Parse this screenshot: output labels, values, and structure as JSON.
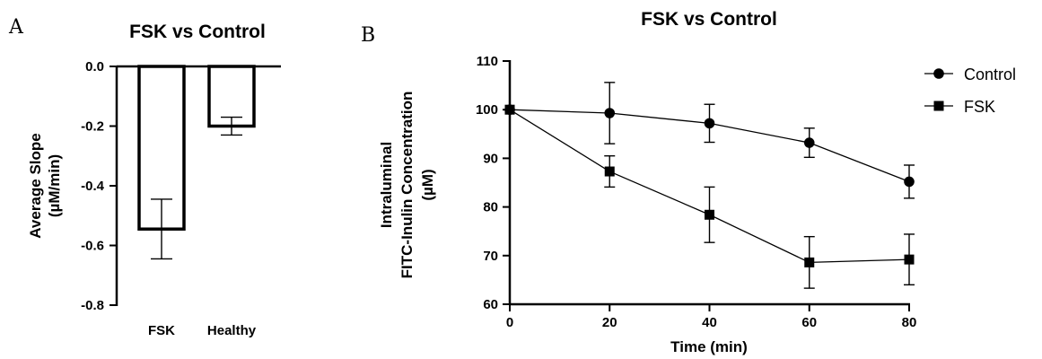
{
  "chart_data": [
    {
      "panel": "A",
      "type": "bar",
      "title": "FSK vs Control",
      "ylabel_lines": [
        "Average Slope",
        "(µM/min)"
      ],
      "xlabel": "",
      "categories": [
        "FSK",
        "Healthy"
      ],
      "values": [
        -0.545,
        -0.2
      ],
      "error": [
        0.1,
        0.03
      ],
      "ylim": [
        -0.8,
        0.0
      ],
      "yticks": [
        0.0,
        -0.2,
        -0.4,
        -0.6,
        -0.8
      ],
      "ytick_labels": [
        "0.0",
        "-0.2",
        "-0.4",
        "-0.6",
        "-0.8"
      ],
      "grid": false
    },
    {
      "panel": "B",
      "type": "line",
      "title": "FSK vs Control",
      "xlabel": "Time (min)",
      "ylabel_lines": [
        "Intraluminal",
        "FITC-Inulin Concentration",
        "(µM)"
      ],
      "x": [
        0,
        20,
        40,
        60,
        80
      ],
      "xlim": [
        0,
        80
      ],
      "ylim": [
        60,
        110
      ],
      "xticks": [
        0,
        20,
        40,
        60,
        80
      ],
      "yticks": [
        60,
        70,
        80,
        90,
        100,
        110
      ],
      "grid": false,
      "legend_position": "top-right",
      "series": [
        {
          "name": "Control",
          "marker": "circle",
          "values": [
            100,
            99.3,
            97.2,
            93.2,
            85.2
          ],
          "error": [
            0,
            6.3,
            3.9,
            3.0,
            3.4
          ]
        },
        {
          "name": "FSK",
          "marker": "square",
          "values": [
            100,
            87.3,
            78.4,
            68.6,
            69.2
          ],
          "error": [
            0,
            3.2,
            5.7,
            5.3,
            5.2
          ]
        }
      ]
    }
  ]
}
